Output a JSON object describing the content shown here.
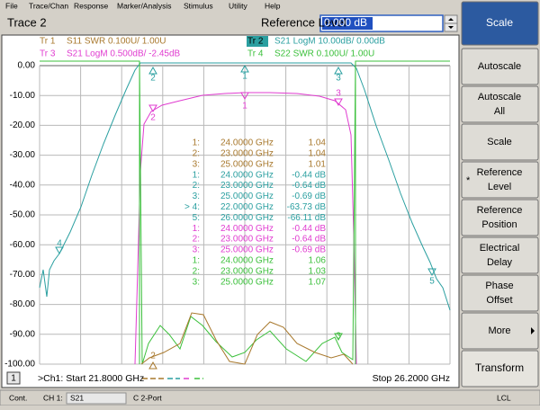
{
  "menu": [
    "File",
    "Trace/Chan",
    "Response",
    "Marker/Analysis",
    "Stimulus",
    "Utility",
    "Help"
  ],
  "title_bar": {
    "trace": "Trace 2",
    "label": "Reference Level",
    "value": "0.000 dB"
  },
  "softkeys": [
    [
      "Scale"
    ],
    [
      "Autoscale"
    ],
    [
      "Autoscale",
      "All"
    ],
    [
      "Scale"
    ],
    [
      "Reference",
      "Level"
    ],
    [
      "Reference",
      "Position"
    ],
    [
      "Electrical",
      "Delay"
    ],
    [
      "Phase",
      "Offset"
    ],
    [
      "More"
    ],
    [
      "Transform"
    ]
  ],
  "softkey_mark": "*",
  "traces": [
    {
      "id": "Tr 1",
      "text": "S11 SWR 0.100U/  1.00U",
      "color": "#a8782c"
    },
    {
      "id": "Tr 2",
      "text": "S21 LogM 10.00dB/  0.00dB",
      "color": "#2a9fa0"
    },
    {
      "id": "Tr 3",
      "text": "S21 LogM 0.500dB/ -2.45dB",
      "color": "#e03cd0"
    },
    {
      "id": "Tr 4",
      "text": "S22 SWR 0.100U/  1.00U",
      "color": "#3cc03c"
    }
  ],
  "y_labels": [
    "0.00",
    "-10.00",
    "-20.00",
    "-30.00",
    "-40.00",
    "-50.00",
    "-60.00",
    "-70.00",
    "-80.00",
    "-90.00",
    "-100.00"
  ],
  "markers": [
    {
      "trace": 0,
      "rows": [
        [
          "1:",
          "24.0000 GHz",
          "1.04"
        ],
        [
          "2:",
          "23.0000 GHz",
          "1.04"
        ],
        [
          "3:",
          "25.0000 GHz",
          "1.01"
        ]
      ]
    },
    {
      "trace": 1,
      "rows": [
        [
          "1:",
          "24.0000 GHz",
          "-0.44 dB"
        ],
        [
          "2:",
          "23.0000 GHz",
          "-0.64 dB"
        ],
        [
          "3:",
          "25.0000 GHz",
          "-0.69 dB"
        ],
        [
          "> 4:",
          "22.0000 GHz",
          "-63.73 dB"
        ],
        [
          "5:",
          "26.0000 GHz",
          "-66.11 dB"
        ]
      ]
    },
    {
      "trace": 2,
      "rows": [
        [
          "1:",
          "24.0000 GHz",
          "-0.44 dB"
        ],
        [
          "2:",
          "23.0000 GHz",
          "-0.64 dB"
        ],
        [
          "3:",
          "25.0000 GHz",
          "-0.69 dB"
        ]
      ]
    },
    {
      "trace": 3,
      "rows": [
        [
          "1:",
          "24.0000 GHz",
          "1.06"
        ],
        [
          "2:",
          "23.0000 GHz",
          "1.03"
        ],
        [
          "3:",
          "25.0000 GHz",
          "1.07"
        ]
      ]
    }
  ],
  "plot_markers": [
    {
      "label": "2",
      "trace": 1
    },
    {
      "label": "1",
      "trace": 1
    },
    {
      "label": "3",
      "trace": 1
    },
    {
      "label": "4",
      "trace": 1
    },
    {
      "label": "5",
      "trace": 1
    },
    {
      "label": "1",
      "trace": 2
    },
    {
      "label": "2",
      "trace": 2
    },
    {
      "label": "3",
      "trace": 2
    },
    {
      "label": "3",
      "trace": 3
    },
    {
      "label": "2",
      "trace": 0
    }
  ],
  "bottom": {
    "channel": "1",
    "start": ">Ch1: Start  21.8000 GHz",
    "stop": "Stop  26.2000 GHz"
  },
  "status": [
    "Cont.",
    "CH 1:",
    "S21",
    "C  2-Port",
    "LCL"
  ]
}
